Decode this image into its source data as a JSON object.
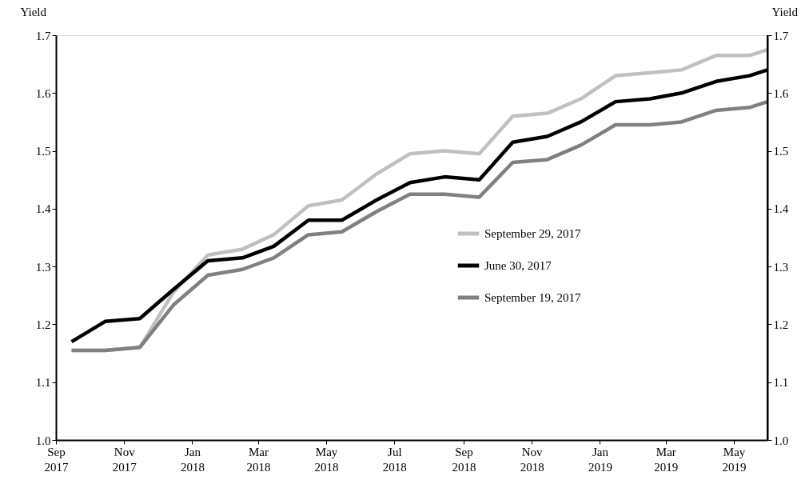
{
  "chart_data": {
    "type": "line",
    "ylabel": "Yield",
    "y2label": "Yield",
    "x": [
      "2017-09-15",
      "2017-10-15",
      "2017-11-15",
      "2017-12-15",
      "2018-01-15",
      "2018-02-15",
      "2018-03-15",
      "2018-04-15",
      "2018-05-15",
      "2018-06-15",
      "2018-07-15",
      "2018-08-15",
      "2018-09-15",
      "2018-10-15",
      "2018-11-15",
      "2018-12-15",
      "2019-01-15",
      "2019-02-15",
      "2019-03-15",
      "2019-04-15",
      "2019-05-15",
      "2019-05-31"
    ],
    "series": [
      {
        "name": "September 29, 2017",
        "color": "#c0c0c0",
        "values": [
          1.155,
          1.155,
          1.16,
          1.255,
          1.32,
          1.33,
          1.355,
          1.405,
          1.415,
          1.46,
          1.495,
          1.5,
          1.495,
          1.56,
          1.565,
          1.59,
          1.63,
          1.635,
          1.64,
          1.665,
          1.665,
          1.675
        ]
      },
      {
        "name": "June 30, 2017",
        "color": "#000000",
        "values": [
          1.17,
          1.205,
          1.21,
          1.26,
          1.31,
          1.315,
          1.335,
          1.38,
          1.38,
          1.415,
          1.445,
          1.455,
          1.45,
          1.515,
          1.525,
          1.55,
          1.585,
          1.59,
          1.6,
          1.62,
          1.63,
          1.64
        ]
      },
      {
        "name": "September 19, 2017",
        "color": "#808080",
        "values": [
          1.155,
          1.155,
          1.16,
          1.233,
          1.285,
          1.295,
          1.315,
          1.355,
          1.36,
          1.395,
          1.425,
          1.425,
          1.42,
          1.48,
          1.485,
          1.51,
          1.545,
          1.545,
          1.55,
          1.57,
          1.575,
          1.585
        ]
      }
    ],
    "xlim": [
      "2017-09-01",
      "2019-05-31"
    ],
    "xticks": [
      {
        "value": "2017-09",
        "label": "Sep 2017"
      },
      {
        "value": "2017-11",
        "label": "Nov 2017"
      },
      {
        "value": "2018-01",
        "label": "Jan 2018"
      },
      {
        "value": "2018-03",
        "label": "Mar 2018"
      },
      {
        "value": "2018-05",
        "label": "May 2018"
      },
      {
        "value": "2018-07",
        "label": "Jul 2018"
      },
      {
        "value": "2018-09",
        "label": "Sep 2018"
      },
      {
        "value": "2018-11",
        "label": "Nov 2018"
      },
      {
        "value": "2019-01",
        "label": "Jan 2019"
      },
      {
        "value": "2019-03",
        "label": "Mar 2019"
      },
      {
        "value": "2019-05",
        "label": "May 2019"
      }
    ],
    "ylim": [
      1.0,
      1.7
    ],
    "yticks": [
      {
        "value": 1.0,
        "label": "1.0"
      },
      1.1,
      1.2,
      1.3,
      1.4,
      1.5,
      1.6,
      1.7
    ],
    "y2lim": [
      1.0,
      1.7
    ],
    "y2ticks": [
      {
        "value": 1.0,
        "label": "1.0"
      },
      1.1,
      1.2,
      1.3,
      1.4,
      1.5,
      1.6,
      1.7
    ],
    "legend": "right",
    "grid": false,
    "marker": "none",
    "line_style": "solid"
  }
}
